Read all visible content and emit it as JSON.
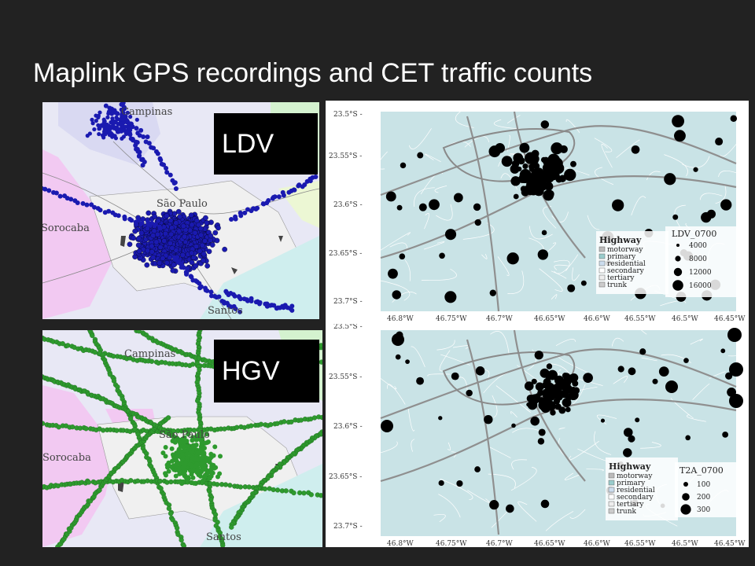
{
  "slide": {
    "title": "Maplink GPS recordings and CET traffic counts"
  },
  "ldv_map": {
    "label": "LDV",
    "point_color": "#1a1ab0",
    "cities": [
      "Campinas",
      "São Paulo",
      "Sorocaba",
      "Santos"
    ]
  },
  "hgv_map": {
    "label": "HGV",
    "point_color": "#2e9a2e",
    "cities": [
      "Campinas",
      "São Paulo",
      "Sorocaba",
      "Santos"
    ]
  },
  "ldv_counts": {
    "y_ticks": [
      "23.5°S -",
      "23.55°S -",
      "23.6°S -",
      "23.65°S -",
      "23.7°S -"
    ],
    "x_ticks": [
      "46.8°W",
      "46.75°W",
      "46.7°W",
      "46.65°W",
      "46.6°W",
      "46.55°W",
      "46.5°W",
      "46.45°W"
    ],
    "highway_title": "Highway",
    "highway_items": [
      "motorway",
      "primary",
      "residential",
      "secondary",
      "tertiary",
      "trunk"
    ],
    "size_title": "LDV_0700",
    "size_items": [
      "4000",
      "8000",
      "12000",
      "16000"
    ]
  },
  "hgv_counts": {
    "y_ticks": [
      "23.5°S -",
      "23.55°S -",
      "23.6°S -",
      "23.65°S -",
      "23.7°S -"
    ],
    "x_ticks": [
      "46.8°W",
      "46.75°W",
      "46.7°W",
      "46.65°W",
      "46.6°W",
      "46.55°W",
      "46.5°W",
      "46.45°W"
    ],
    "highway_title": "Highway",
    "highway_items": [
      "motorway",
      "primary",
      "residential",
      "secondary",
      "tertiary",
      "trunk"
    ],
    "size_title": "T2A_0700",
    "size_items": [
      "100",
      "200",
      "300"
    ]
  }
}
